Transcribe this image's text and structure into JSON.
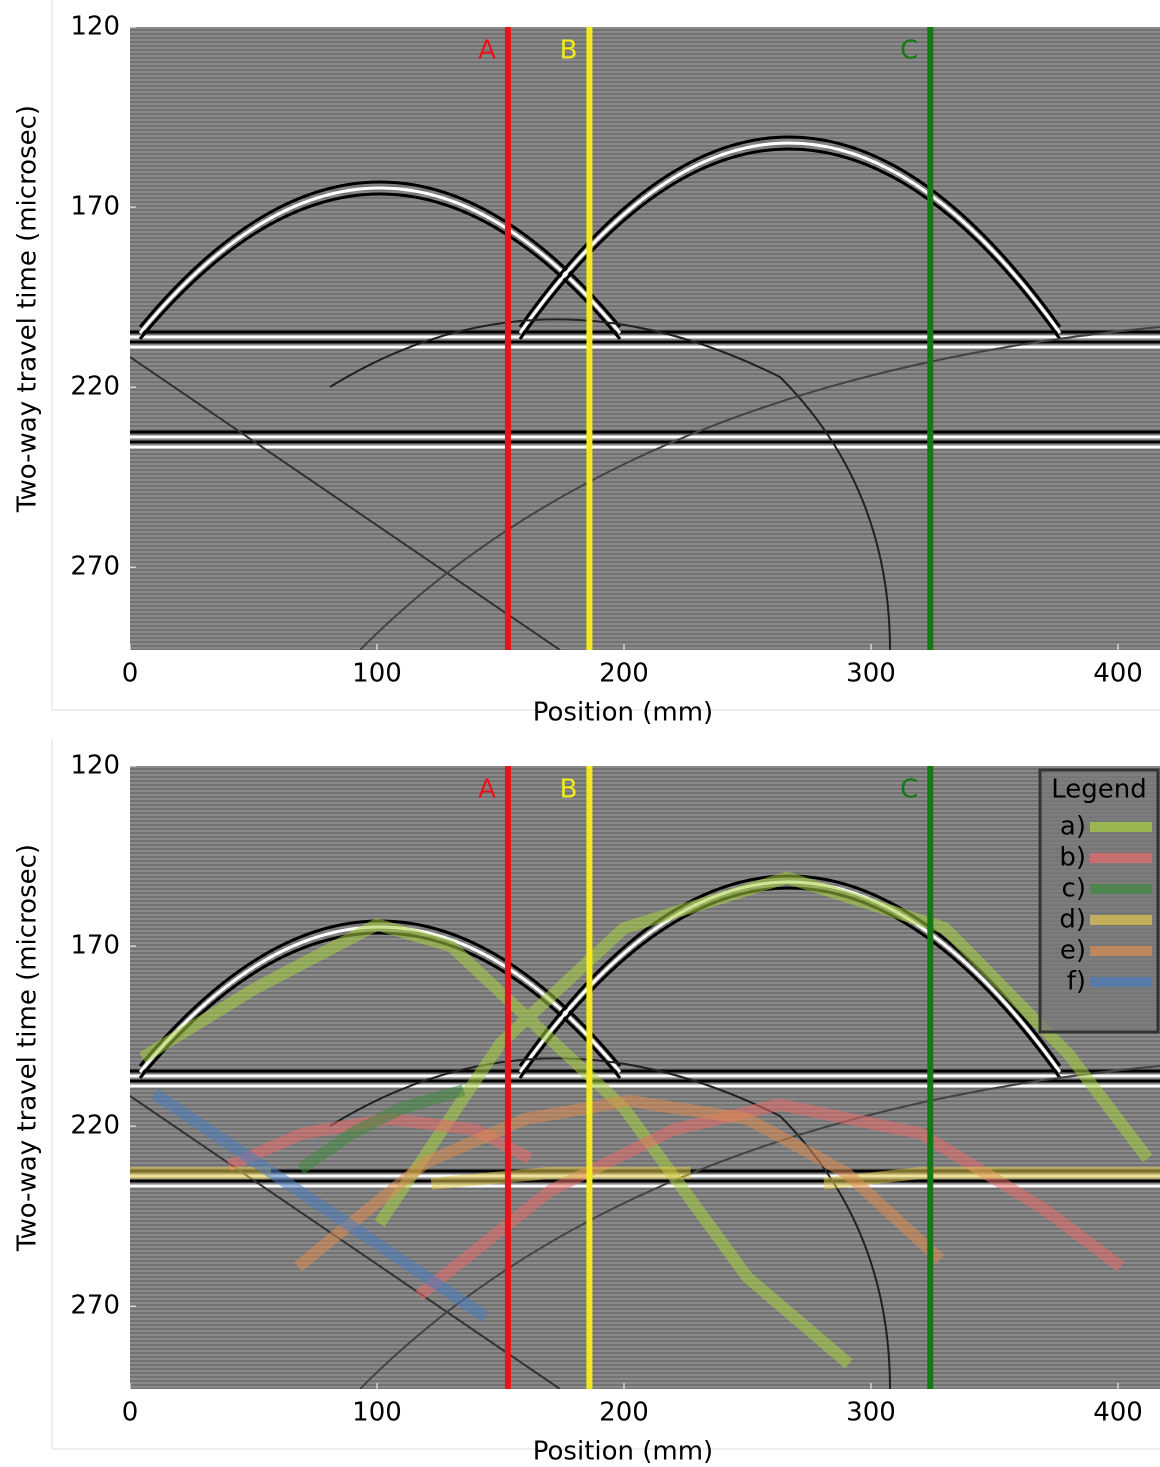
{
  "chart_data": [
    {
      "type": "radargram",
      "xlabel": "Position (mm)",
      "ylabel": "Two-way travel time (microsec)",
      "xlim": [
        0,
        417
      ],
      "ylim": [
        120,
        293
      ],
      "invert_y": true,
      "xticks": [
        0,
        100,
        200,
        300,
        400
      ],
      "yticks": [
        120,
        170,
        220,
        270
      ],
      "vlines": [
        {
          "label": "A",
          "x": 153,
          "color": "#e8141c"
        },
        {
          "label": "B",
          "x": 186,
          "color": "#f2ea1c"
        },
        {
          "label": "C",
          "x": 324,
          "color": "#137a13"
        }
      ]
    },
    {
      "type": "radargram",
      "xlabel": "Position (mm)",
      "ylabel": "Two-way travel time (microsec)",
      "xlim": [
        0,
        417
      ],
      "ylim": [
        120,
        293
      ],
      "invert_y": true,
      "xticks": [
        0,
        100,
        200,
        300,
        400
      ],
      "yticks": [
        120,
        170,
        220,
        270
      ],
      "vlines": [
        {
          "label": "A",
          "x": 153,
          "color": "#e8141c"
        },
        {
          "label": "B",
          "x": 186,
          "color": "#f2ea1c"
        },
        {
          "label": "C",
          "x": 324,
          "color": "#137a13"
        }
      ],
      "legend_title": "Legend",
      "legend": "upper right",
      "series": [
        {
          "name": "a)",
          "color": "#a8d040",
          "x": [
            5,
            50,
            100,
            130,
            200,
            250,
            291,
            null,
            101,
            150,
            200,
            266,
            330,
            380,
            412
          ],
          "values": [
            201,
            182,
            164,
            170,
            215,
            262,
            286,
            null,
            247,
            197,
            165,
            151,
            165,
            200,
            229
          ]
        },
        {
          "name": "b)",
          "color": "#e86a6a",
          "x": [
            40,
            70,
            105,
            140,
            162,
            null,
            117,
            170,
            220,
            263,
            320,
            370,
            401
          ],
          "values": [
            231,
            222,
            218,
            221,
            229,
            null,
            267,
            238,
            221,
            214,
            222,
            243,
            259
          ]
        },
        {
          "name": "c)",
          "color": "#3f8a3f",
          "x": [
            69,
            90,
            110,
            135
          ],
          "values": [
            232,
            222,
            215,
            210
          ]
        },
        {
          "name": "d)",
          "color": "#e0c848",
          "x": [
            0,
            57,
            null,
            122,
            170,
            227,
            null,
            281,
            320,
            417
          ],
          "values": [
            233,
            233,
            null,
            236,
            233,
            233,
            null,
            236,
            233,
            233
          ]
        },
        {
          "name": "e)",
          "color": "#dc8c50",
          "x": [
            68,
            120,
            160,
            202,
            250,
            290,
            328
          ],
          "values": [
            259,
            230,
            218,
            213,
            218,
            233,
            257
          ]
        },
        {
          "name": "f)",
          "color": "#4a7cc0",
          "x": [
            10,
            144
          ],
          "values": [
            211,
            273
          ]
        }
      ]
    }
  ]
}
